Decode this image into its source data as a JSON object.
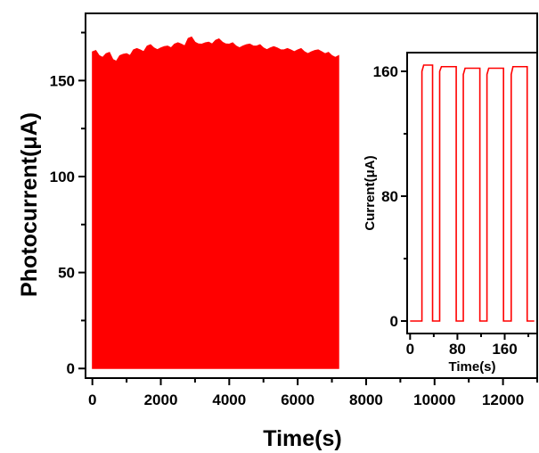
{
  "chart_data": [
    {
      "type": "area",
      "xlabel": "Time(s)",
      "ylabel": "Photocurrent(μA)",
      "xlim": [
        -200,
        13000
      ],
      "ylim": [
        -5,
        185
      ],
      "xticks": [
        0,
        2000,
        4000,
        6000,
        8000,
        10000,
        12000
      ],
      "yticks": [
        0,
        50,
        100,
        150
      ],
      "color": "#ff0000",
      "grid": false,
      "legend": "none",
      "series": [
        {
          "x": [
            0,
            200,
            400,
            600,
            800,
            1000,
            1200,
            1400,
            1600,
            1800,
            2000,
            2200,
            2400,
            2600,
            2800,
            3000,
            3200,
            3400,
            3600,
            3800,
            4000,
            4200,
            4400,
            4600,
            4800,
            5000,
            5200,
            5400,
            5600,
            5800,
            6000,
            6200,
            6400,
            6600,
            6800,
            7000,
            7200
          ],
          "values": [
            165,
            163,
            164,
            161,
            163,
            164,
            166,
            166,
            168,
            167,
            167,
            168,
            169,
            169,
            172,
            170,
            169,
            170,
            171,
            170,
            169,
            168,
            168,
            169,
            168,
            167,
            167,
            167,
            166,
            166,
            166,
            165,
            165,
            166,
            164,
            163,
            163
          ]
        }
      ]
    },
    {
      "type": "line",
      "inset": true,
      "xlabel": "Time(s)",
      "ylabel": "Current(μA)",
      "xlim": [
        -5,
        215
      ],
      "ylim": [
        -8,
        172
      ],
      "xticks": [
        0,
        80,
        160
      ],
      "yticks": [
        0,
        80,
        160
      ],
      "color": "#ff0000",
      "grid": false,
      "legend": "none",
      "series": [
        {
          "x": [
            0,
            20,
            20,
            23,
            38,
            38,
            50,
            50,
            53,
            78,
            78,
            90,
            90,
            93,
            118,
            118,
            130,
            130,
            133,
            158,
            158,
            171,
            171,
            174,
            198,
            198,
            210
          ],
          "values": [
            0,
            0,
            160,
            164,
            164,
            0,
            0,
            160,
            163,
            163,
            0,
            0,
            158,
            162,
            162,
            0,
            0,
            158,
            162,
            162,
            0,
            0,
            158,
            163,
            163,
            0,
            0
          ]
        }
      ]
    }
  ]
}
